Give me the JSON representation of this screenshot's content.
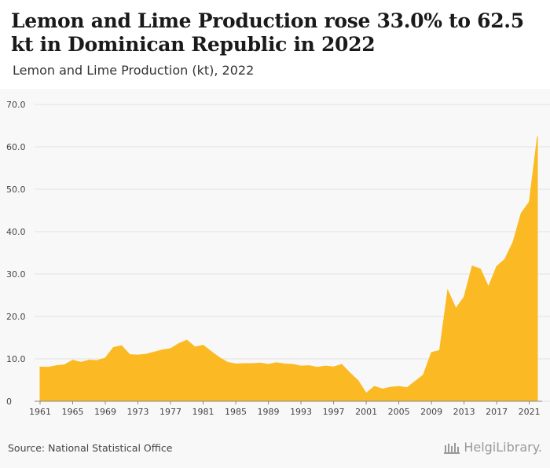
{
  "header": {
    "title": "Lemon and Lime Production rose 33.0% to 62.5 kt in Dominican Republic in 2022",
    "subtitle": "Lemon and Lime Production (kt), 2022"
  },
  "footer": {
    "source": "Source: National Statistical Office",
    "brand": "HelgiLibrary."
  },
  "colors": {
    "area": "#FBBA23",
    "grid": "#e2e2e2",
    "axis_text": "#444444",
    "background": "#f8f8f8"
  },
  "chart_data": {
    "type": "area",
    "title": "Lemon and Lime Production (kt), 2022",
    "xlabel": "",
    "ylabel": "",
    "ylim": [
      0,
      70
    ],
    "yticks": [
      "0",
      "10.0",
      "20.0",
      "30.0",
      "40.0",
      "50.0",
      "60.0",
      "70.0"
    ],
    "xticks": [
      "1961",
      "1965",
      "1969",
      "1973",
      "1977",
      "1981",
      "1985",
      "1989",
      "1993",
      "1997",
      "2001",
      "2005",
      "2009",
      "2013",
      "2017",
      "2021"
    ],
    "grid": true,
    "series": [
      {
        "x": [
          1961,
          1962,
          1963,
          1964,
          1965,
          1966,
          1967,
          1968,
          1969,
          1970,
          1971,
          1972,
          1973,
          1974,
          1975,
          1976,
          1977,
          1978,
          1979,
          1980,
          1981,
          1982,
          1983,
          1984,
          1985,
          1986,
          1987,
          1988,
          1989,
          1990,
          1991,
          1992,
          1993,
          1994,
          1995,
          1996,
          1997,
          1998,
          1999,
          2000,
          2001,
          2002,
          2003,
          2004,
          2005,
          2006,
          2007,
          2008,
          2009,
          2010,
          2011,
          2012,
          2013,
          2014,
          2015,
          2016,
          2017,
          2018,
          2019,
          2020,
          2021,
          2022
        ],
        "values": [
          8.1,
          8.0,
          8.4,
          8.6,
          9.7,
          9.2,
          9.7,
          9.6,
          10.2,
          12.7,
          13.1,
          11.0,
          10.9,
          11.1,
          11.6,
          12.1,
          12.4,
          13.6,
          14.4,
          12.8,
          13.2,
          11.7,
          10.3,
          9.2,
          8.8,
          8.9,
          8.9,
          9.0,
          8.7,
          9.1,
          8.8,
          8.7,
          8.3,
          8.4,
          8.0,
          8.3,
          8.1,
          8.7,
          6.7,
          4.9,
          1.9,
          3.5,
          2.9,
          3.3,
          3.5,
          3.2,
          4.7,
          6.2,
          11.5,
          12.0,
          26.2,
          21.9,
          24.6,
          31.9,
          31.2,
          27.0,
          31.8,
          33.5,
          37.5,
          44.3,
          47.0,
          62.5
        ]
      }
    ]
  }
}
